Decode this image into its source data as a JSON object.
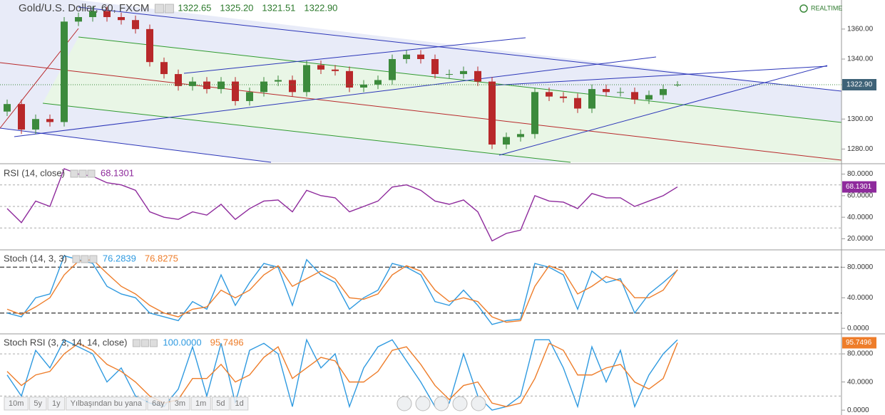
{
  "chart_data": [
    {
      "type": "candlestick",
      "title": "Gold/U.S. Dollar, 60, FXCM",
      "header_values": [
        "1322.65",
        "1325.20",
        "1321.51",
        "1322.90"
      ],
      "realtime": "REALTIME",
      "last_label": "1322.90",
      "up_color": "#3c8a3c",
      "down_color": "#b8282a",
      "ylim": [
        1272.1,
        1377.5
      ],
      "yticks": [
        {
          "value": 1280,
          "label": "1280.00"
        },
        {
          "value": 1300,
          "label": "1300.00"
        },
        {
          "value": 1340,
          "label": "1340.00"
        },
        {
          "value": 1360,
          "label": "1360.00"
        }
      ],
      "open": [
        1305,
        1310,
        1293,
        1300,
        1298,
        1365,
        1368,
        1372,
        1368,
        1366,
        1360,
        1338,
        1330,
        1322,
        1325,
        1320,
        1325,
        1312,
        1318,
        1325,
        1326,
        1318,
        1336,
        1333,
        1332,
        1321,
        1323,
        1326,
        1340,
        1343,
        1340,
        1330,
        1330,
        1332,
        1325,
        1283,
        1288,
        1290,
        1318,
        1315,
        1314,
        1307,
        1320,
        1318,
        1318,
        1313,
        1316,
        1322.65
      ],
      "high": [
        1313,
        1313,
        1303,
        1303,
        1368,
        1371,
        1375,
        1375,
        1371,
        1369,
        1363,
        1341,
        1333,
        1328,
        1328,
        1328,
        1328,
        1321,
        1328,
        1329,
        1329,
        1339,
        1339,
        1336,
        1335,
        1326,
        1329,
        1343,
        1346,
        1346,
        1343,
        1333,
        1335,
        1335,
        1328,
        1291,
        1293,
        1321,
        1321,
        1318,
        1317,
        1323,
        1323,
        1321,
        1321,
        1319,
        1323,
        1325.2
      ],
      "low": [
        1302,
        1290,
        1290,
        1295,
        1295,
        1362,
        1365,
        1365,
        1363,
        1357,
        1335,
        1327,
        1319,
        1319,
        1317,
        1317,
        1309,
        1309,
        1315,
        1322,
        1315,
        1315,
        1330,
        1329,
        1318,
        1318,
        1320,
        1323,
        1337,
        1337,
        1327,
        1327,
        1327,
        1322,
        1280,
        1280,
        1285,
        1287,
        1312,
        1311,
        1304,
        1304,
        1315,
        1315,
        1310,
        1310,
        1313,
        1321.51
      ],
      "close": [
        1310,
        1293,
        1300,
        1298,
        1365,
        1368,
        1372,
        1368,
        1366,
        1360,
        1338,
        1330,
        1322,
        1325,
        1320,
        1325,
        1312,
        1318,
        1325,
        1326,
        1318,
        1336,
        1333,
        1332,
        1321,
        1323,
        1326,
        1340,
        1343,
        1340,
        1330,
        1330,
        1332,
        1325,
        1283,
        1288,
        1290,
        1318,
        1315,
        1314,
        1307,
        1320,
        1318,
        1318,
        1313,
        1316,
        1320,
        1322.9
      ]
    },
    {
      "type": "line",
      "title": "RSI (14, close)",
      "header_values": [
        "68.1301"
      ],
      "last_label": "68.1301",
      "label_color": "#8e2a9c",
      "ylim": [
        11.7,
        87
      ],
      "yticks": [
        {
          "value": 20,
          "label": "20.0000"
        },
        {
          "value": 40,
          "label": "40.0000"
        },
        {
          "value": 60,
          "label": "60.0000"
        },
        {
          "value": 80,
          "label": "80.0000"
        }
      ],
      "bands": [
        30,
        50,
        70
      ],
      "series": [
        {
          "name": "RSI",
          "color": "#8e2a9c",
          "values": [
            48,
            35,
            55,
            50,
            85,
            80,
            78,
            72,
            70,
            65,
            45,
            40,
            38,
            45,
            42,
            52,
            38,
            48,
            55,
            56,
            45,
            65,
            60,
            58,
            45,
            50,
            55,
            68,
            70,
            65,
            55,
            52,
            56,
            45,
            18,
            25,
            28,
            60,
            55,
            54,
            48,
            62,
            58,
            58,
            50,
            55,
            60,
            68.1301
          ]
        }
      ]
    },
    {
      "type": "line",
      "title": "Stoch (14, 3, 3)",
      "header_values": [
        "76.2839",
        "76.8275"
      ],
      "ylim": [
        -4.5,
        100
      ],
      "yticks": [
        {
          "value": 0,
          "label": "0.0000"
        },
        {
          "value": 40,
          "label": "40.0000"
        },
        {
          "value": 80,
          "label": "80.0000"
        }
      ],
      "bands": [
        20,
        80
      ],
      "series": [
        {
          "name": "%K",
          "color": "#2f9ae0",
          "values": [
            20,
            15,
            40,
            45,
            95,
            90,
            85,
            55,
            45,
            40,
            20,
            15,
            10,
            35,
            25,
            70,
            30,
            60,
            85,
            80,
            30,
            90,
            70,
            60,
            25,
            40,
            50,
            85,
            80,
            70,
            35,
            30,
            50,
            30,
            5,
            10,
            12,
            85,
            80,
            70,
            25,
            75,
            60,
            65,
            20,
            45,
            60,
            76.2839
          ]
        },
        {
          "name": "%D",
          "color": "#ee7d2a",
          "values": [
            25,
            18,
            28,
            40,
            70,
            88,
            90,
            72,
            55,
            45,
            30,
            20,
            15,
            25,
            28,
            50,
            40,
            50,
            70,
            82,
            55,
            65,
            75,
            65,
            40,
            38,
            45,
            70,
            82,
            75,
            50,
            35,
            40,
            35,
            15,
            8,
            10,
            55,
            82,
            75,
            45,
            55,
            68,
            62,
            40,
            40,
            50,
            76.8275
          ]
        }
      ]
    },
    {
      "type": "line",
      "title": "Stoch RSI (3, 3, 14, 14, close)",
      "header_values": [
        "100.0000",
        "95.7496"
      ],
      "last_label": "95.7496",
      "label_color": "#ee7d2a",
      "ylim": [
        -4.9,
        105.4
      ],
      "yticks": [
        {
          "value": 0,
          "label": "0.0000"
        },
        {
          "value": 40,
          "label": "40.0000"
        },
        {
          "value": 80,
          "label": "80.0000"
        }
      ],
      "bands": [
        20,
        80
      ],
      "series": [
        {
          "name": "K",
          "color": "#2f9ae0",
          "values": [
            50,
            20,
            85,
            60,
            100,
            90,
            80,
            40,
            60,
            20,
            10,
            5,
            30,
            90,
            20,
            95,
            10,
            85,
            95,
            80,
            5,
            100,
            60,
            80,
            5,
            60,
            90,
            100,
            70,
            40,
            5,
            10,
            80,
            20,
            0,
            5,
            20,
            100,
            100,
            60,
            5,
            90,
            40,
            85,
            5,
            50,
            80,
            100
          ]
        },
        {
          "name": "D",
          "color": "#ee7d2a",
          "values": [
            55,
            35,
            50,
            55,
            80,
            95,
            85,
            65,
            55,
            40,
            20,
            10,
            15,
            45,
            45,
            65,
            40,
            50,
            75,
            90,
            45,
            60,
            75,
            70,
            40,
            40,
            55,
            85,
            90,
            65,
            35,
            15,
            35,
            40,
            10,
            5,
            10,
            45,
            95,
            85,
            50,
            50,
            60,
            65,
            40,
            30,
            45,
            95.7496
          ]
        }
      ]
    }
  ],
  "toolbar": {
    "ranges": [
      "10m",
      "5y",
      "1y",
      "Yılbaşından bu yana",
      "6ay",
      "3m",
      "1m",
      "5d",
      "1d"
    ]
  }
}
